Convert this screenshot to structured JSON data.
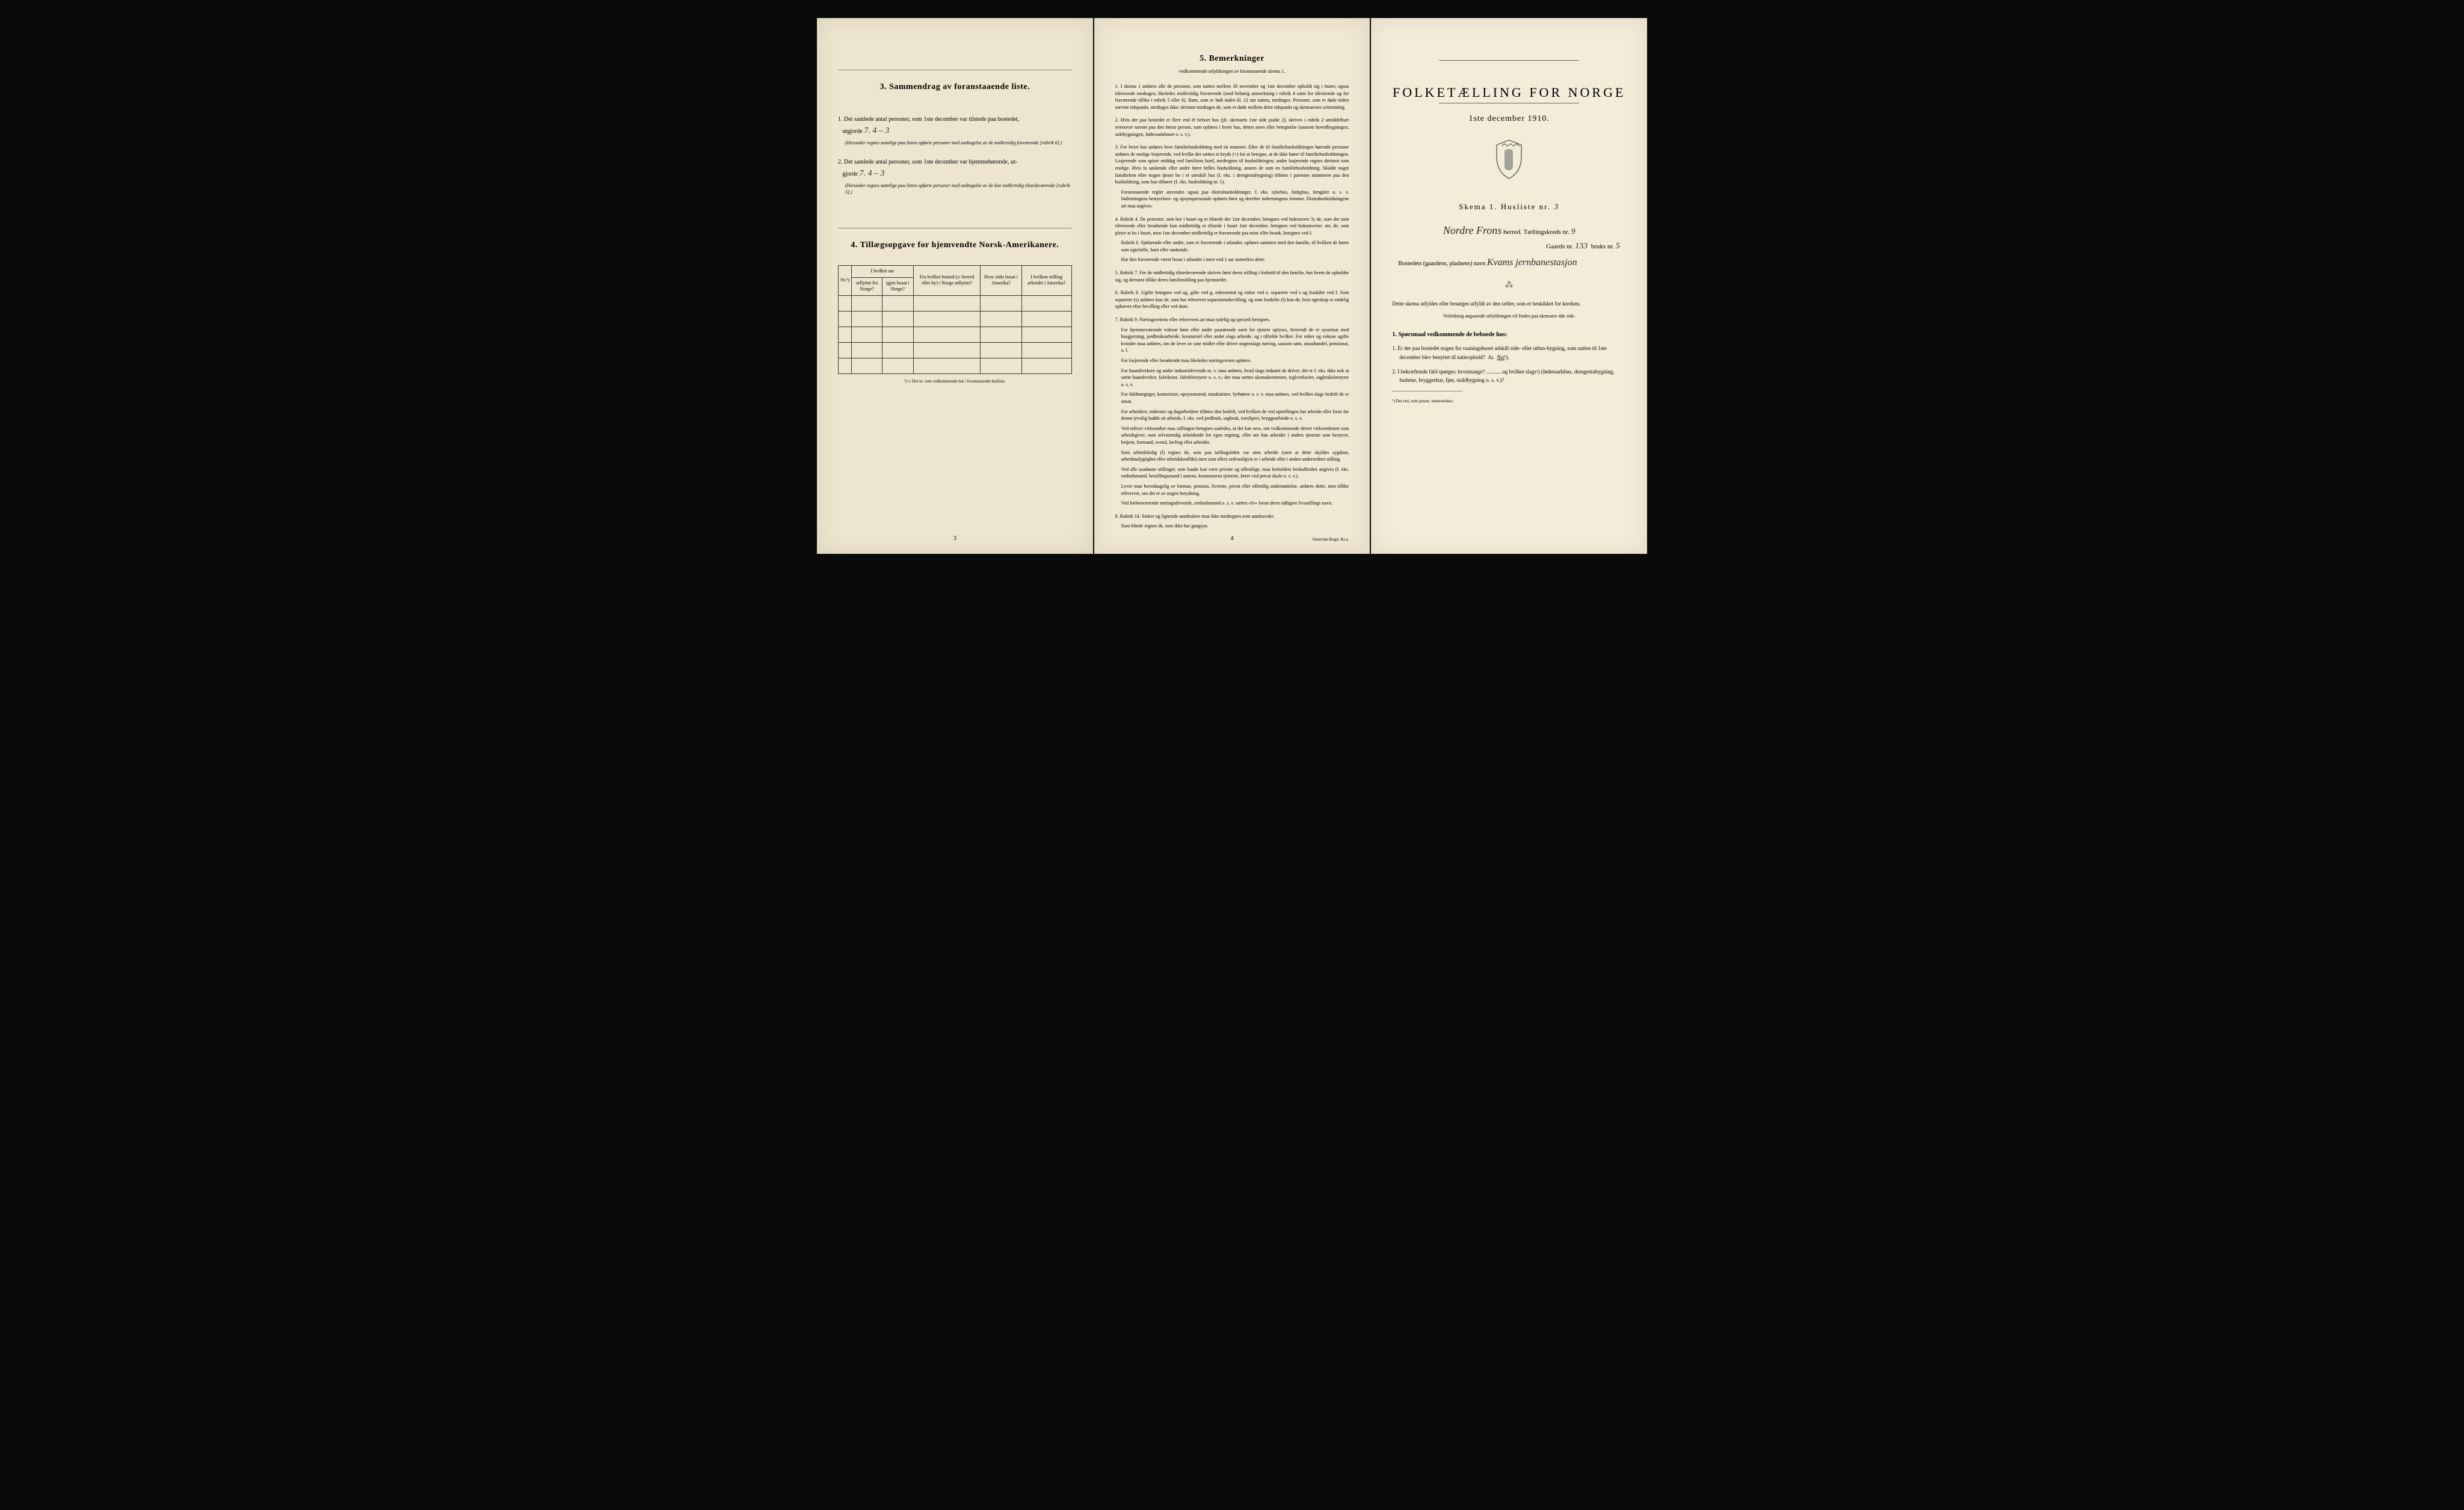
{
  "colors": {
    "page_left": "#ede5cd",
    "page_middle": "#f0e8d2",
    "page_right": "#f3ecd8",
    "background": "#0a0a0a",
    "text": "#1a1a1a",
    "handwriting": "#2a2a2a"
  },
  "left_page": {
    "section3_heading": "3.   Sammendrag av foranstaaende liste.",
    "item1_num": "1.",
    "item1_text": "Det samlede antal personer, som 1ste december var tilstede paa bostedet,",
    "item1_label": "utgjorde",
    "item1_hand": "7.    4 – 3",
    "item1_note": "(Herunder regnes samtlige paa listen opførte personer med undtagelse av de midlertidig fraværende [rubrik 6].)",
    "item2_num": "2.",
    "item2_text": "Det samlede antal personer, som 1ste december var hjemmehørende, ut-",
    "item2_label": "gjorde",
    "item2_hand": "7.    4 – 3",
    "item2_note": "(Herunder regnes samtlige paa listen opførte personer med undtagelse av de kun midlertidig tilstedeværende [rubrik 5].)",
    "section4_heading": "4.   Tillægsopgave for hjemvendte Norsk-Amerikanere.",
    "table": {
      "col_nr": "Nr.¹)",
      "col_a1": "I hvilket aar",
      "col_a1_sub1": "utflyttet fra Norge?",
      "col_a1_sub2": "igjen bosat i Norge?",
      "col_b": "Fra hvilket bosted (ɔ: herred eller by) i Norge utflyttet?",
      "col_c": "Hvor sidst bosat i Amerika?",
      "col_d": "I hvilken stilling arbeidet i Amerika?",
      "empty_rows": 5
    },
    "footnote": "¹) ɔ: Det nr. som vedkommende har i foranstaaende husliste.",
    "page_num": "3"
  },
  "middle_page": {
    "heading": "5.   Bemerkninger",
    "subheading": "vedkommende utfyldningen av foranstaaende skema 1.",
    "items": [
      {
        "n": "1.",
        "t": "I skema 1 anføres alle de personer, som natten mellem 30 november og 1ste december opholdt sig i huset; ogsaa tilreisende medtages; likeledes midlertidig fraværende (med behørig anmerkning i rubrik 4 samt for tilreisende og for fraværende tillike i rubrik 5 eller 6). Barn, som er født inden kl. 12 om natten, medtages. Personer, som er døde inden nævnte tidspunkt, medtages ikke; derimot medtages de, som er døde mellem dette tidspunkt og skemaernes avhentning."
      },
      {
        "n": "2.",
        "t": "Hvis der paa bostedet er flere end ét beboet hus (jfr. skemaets 1ste side punkt 2), skrives i rubrik 2 umiddelbart ovenover navnet paa den første person, som opføres i hvert hus, dettes navn eller betegnelse (saasom hovedbygningen, sidebygningen, føderaadshuset o. s. v.)."
      },
      {
        "n": "3.",
        "t": "For hvert hus anføres hver familiehusholdning med sit nummer. Efter de til familiehusholdningen hørende personer anføres de enslige losjerende, ved hvilke der sættes et kryds (×) for at betegne, at de ikke hører til familiehusholdningen. Losjerende som spiser middag ved familiens bord, medregnes til husholdningen; andre losjerende regnes derimot som enslige. Hvis to søskende eller andre fører fælles husholdning, ansees de som en familiehusholdning. Skulde noget familielem eller nogen tjener bo i et særskilt hus (f. eks. i drengestubygning) tilføies i parentes nummeret paa den husholdning, som han tilhører (f. eks. husholdning nr. 1).",
        "sub": "Foranstaaende regler anvendes ogsaa paa ekstrahusholdninger, f. eks. sykehus, fattighus, fængsler o. s. v. Indretningens bestyrelses- og opsynspersonale opføres først og derefter indretningens lemmer. Ekstrahusholdningens art maa angives."
      },
      {
        "n": "4.",
        "t": "Rubrik 4. De personer, som bor i huset og er tilstede der 1ste december, betegnes ved bokstaven: b; de, som der som tilreisende eller besøkende kun midlertidig er tilstede i huset 1ste december, betegnes ved bokstaverne: mt; de, som pleier at bo i huset, men 1ste december midlertidig er fraværende paa reise eller besøk, betegnes ved f.",
        "sub": "Rubrik 6. Sjøfarende eller andre, som er fraværende i utlandet, opføres sammen med den familie, til hvilken de hører som egtefælle, barn eller søskende.",
        "sub2": "Har den fraværende været bosat i utlandet i mere end 1 aar anmerkes dette."
      },
      {
        "n": "5.",
        "t": "Rubrik 7. For de midlertidig tilstedeværende skrives først deres stilling i forhold til den familie, hos hvem de opholder sig, og dernæst tillike deres familiestilling paa hjemstedet."
      },
      {
        "n": "6.",
        "t": "Rubrik 8. Ugifte betegnes ved ug, gifte ved g, enkemænd og enker ved e, separerte ved s og fraskilte ved f. Som separerte (s) anføres kun de, som har erhvervet separationsbevilling, og som fraskilte (f) kun de, hvis egteskap er endelig ophævet efter bevilling eller ved dom."
      },
      {
        "n": "7.",
        "t": "Rubrik 9. Næringsveiens eller erhvervets art maa tydelig og specielt betegnes.",
        "subs": [
          "For hjemmeværende voksne børn eller andre paarørende samt for tjenere oplyses, hvorvidt de er sysselsat med husgjerning, jordbruksarbeide, kreaturstel eller andet slags arbeide, og i tilfælde hvilket. For enker og voksne ugifte kvinder maa anføres, om de lever av sine midler eller driver nogenslags næring, saasom søm, smaahandel, pensionat, o. l.",
          "For losjerende eller besøkende maa likeledes næringsveien opføres.",
          "For haandverkere og andre industridrivende m. v. maa anføres, hvad slags industri de driver; det er f. eks. ikke nok at sætte haandverker, fabrikeier, fabrikbestyrer o. s. v.; der maa sættes skomakermester, teglverkseier, sagbruksbestyrer o. s. v.",
          "For fuldmægtiger, kontorister, opsynsmænd, maskinister, fyrbøtere o. s. v. maa anføres, ved hvilket slags bedrift de er ansat.",
          "For arbeidere, inderster og dagarbeidere tilføies den bedrift, ved hvilken de ved optællingen har arbeide eller forut for denne jevnlig hadde sit arbeide, f. eks. ved jordbruk, sagbruk, træsliperi, bryggearbeide o. s. v.",
          "Ved enhver virksomhet maa stillingen betegnes saaledes, at det kan sees, om vedkommende driver virksomheten som arbeidsgiver, som selvstændig arbeidende for egen regning, eller om han arbeider i andres tjeneste som bestyrer, betjent, formand, svend, lærling eller arbeider.",
          "Som arbeidsledig (l) regnes de, som paa tællingstiden var uten arbeide (uten at dette skyldes sygdom, arbeidsudygtighet eller arbeidskonflikt) men som ellers sedvanligvis er i arbeide eller i anden underordnet stilling.",
          "Ved alle saadanne stillinger, som baade kan være private og offentlige, maa forholdets beskaffenhet angives (f. eks. embedsmand, bestillingsmand i statens, kommunens tjeneste, lærer ved privat skole o. s. v.).",
          "Lever man hovedsagelig av formue, pension, livrente, privat eller offentlig understøttelse, anføres dette, men tillike erhvervet, om det er av nogen betydning.",
          "Ved forhenværende næringsdrivende, embedsmænd o. s. v. sættes «fv» foran deres tidligere livsstillings navn."
        ]
      },
      {
        "n": "8.",
        "t": "Rubrik 14. Sinker og lignende aandssløve maa ikke medregnes som aandssvake.",
        "sub": "Som blinde regnes de, som ikke har gangsyn."
      }
    ],
    "page_num": "4",
    "printer": "Steen'ske Bogtr. Kr.a."
  },
  "right_page": {
    "title": "FOLKETÆLLING FOR NORGE",
    "subtitle": "1ste december 1910.",
    "skema_label": "Skema 1.   Husliste nr.",
    "skema_hand": "3",
    "herred_hand": "Nordre Frons",
    "herred_label": "herred.   Tællingskreds nr.",
    "kreds_hand": "9",
    "gaard_label": "Gaards nr.",
    "gaard_hand": "133",
    "bruks_label": "bruks nr.",
    "bruks_hand": "5",
    "bostedet_label": "Bostedets (gaardens, pladsens) navn",
    "bostedet_hand": "Kvams jernbanestasjon",
    "instr1": "Dette skema utfyldes eller besørges utfyldt av den tæller, som er beskikket for kredsen.",
    "instr2": "Veiledning angaaende utfyldningen vil findes paa skemaets 4de side.",
    "q_heading": "1. Spørsmaal vedkommende de beboede hus:",
    "q1_num": "1.",
    "q1_text": "Er der paa bostedet nogen fra vaaningshuset adskilt side- eller uthus-bygning, som natten til 1ste december blev benyttet til natteophold?",
    "q1_ja": "Ja.",
    "q1_nei": "Nei",
    "q1_sup": "¹).",
    "q2_num": "2.",
    "q2_text": "I bekræftende fald spørges: hvormange? ............og hvilket slags¹) (føderaadshus, drengestubygning, badstue, bryggerhus, fjøs, staldbygning o. s. v.)?",
    "footnote": "¹) Det ord, som passer, understrekes."
  }
}
